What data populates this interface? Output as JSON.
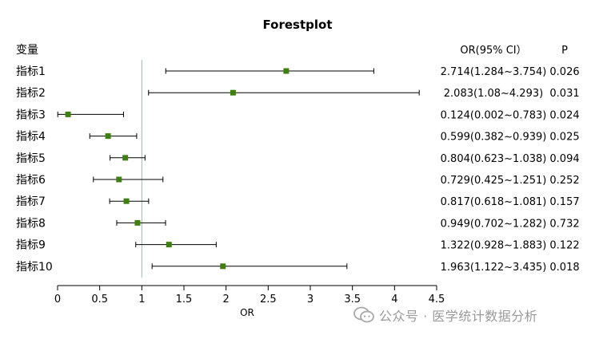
{
  "chart_data": {
    "type": "forest",
    "title": "Forestplot",
    "xlabel": "OR",
    "xlim": [
      0,
      4.5
    ],
    "x_ticks": [
      "0",
      "0.5",
      "1",
      "1.5",
      "2",
      "2.5",
      "3",
      "3.5",
      "4",
      "4.5"
    ],
    "reference_line": 1,
    "columns": {
      "variable": "变量",
      "or_ci": "OR(95% CI）",
      "p": "P"
    },
    "rows": [
      {
        "label": "指标1",
        "or": 2.714,
        "lower": 1.284,
        "upper": 3.754,
        "or_ci": "2.714(1.284~3.754)",
        "p": "0.026"
      },
      {
        "label": "指标2",
        "or": 2.083,
        "lower": 1.08,
        "upper": 4.293,
        "or_ci": "2.083(1.08~4.293)",
        "p": "0.031"
      },
      {
        "label": "指标3",
        "or": 0.124,
        "lower": 0.002,
        "upper": 0.783,
        "or_ci": "0.124(0.002~0.783)",
        "p": "0.024"
      },
      {
        "label": "指标4",
        "or": 0.599,
        "lower": 0.382,
        "upper": 0.939,
        "or_ci": "0.599(0.382~0.939)",
        "p": "0.025"
      },
      {
        "label": "指标5",
        "or": 0.804,
        "lower": 0.623,
        "upper": 1.038,
        "or_ci": "0.804(0.623~1.038)",
        "p": "0.094"
      },
      {
        "label": "指标6",
        "or": 0.729,
        "lower": 0.425,
        "upper": 1.251,
        "or_ci": "0.729(0.425~1.251)",
        "p": "0.252"
      },
      {
        "label": "指标7",
        "or": 0.817,
        "lower": 0.618,
        "upper": 1.081,
        "or_ci": "0.817(0.618~1.081)",
        "p": "0.157"
      },
      {
        "label": "指标8",
        "or": 0.949,
        "lower": 0.702,
        "upper": 1.282,
        "or_ci": "0.949(0.702~1.282)",
        "p": "0.732"
      },
      {
        "label": "指标9",
        "or": 1.322,
        "lower": 0.928,
        "upper": 1.883,
        "or_ci": "1.322(0.928~1.883)",
        "p": "0.122"
      },
      {
        "label": "指标10",
        "or": 1.963,
        "lower": 1.122,
        "upper": 3.435,
        "or_ci": "1.963(1.122~3.435)",
        "p": "0.018"
      }
    ],
    "colors": {
      "point": "#3f7f12",
      "reference_line": "#7fc4c4",
      "ci": "#000000"
    }
  },
  "watermark": {
    "text": "公众号 · 医学统计数据分析",
    "icon": "wechat-official-account-icon"
  }
}
